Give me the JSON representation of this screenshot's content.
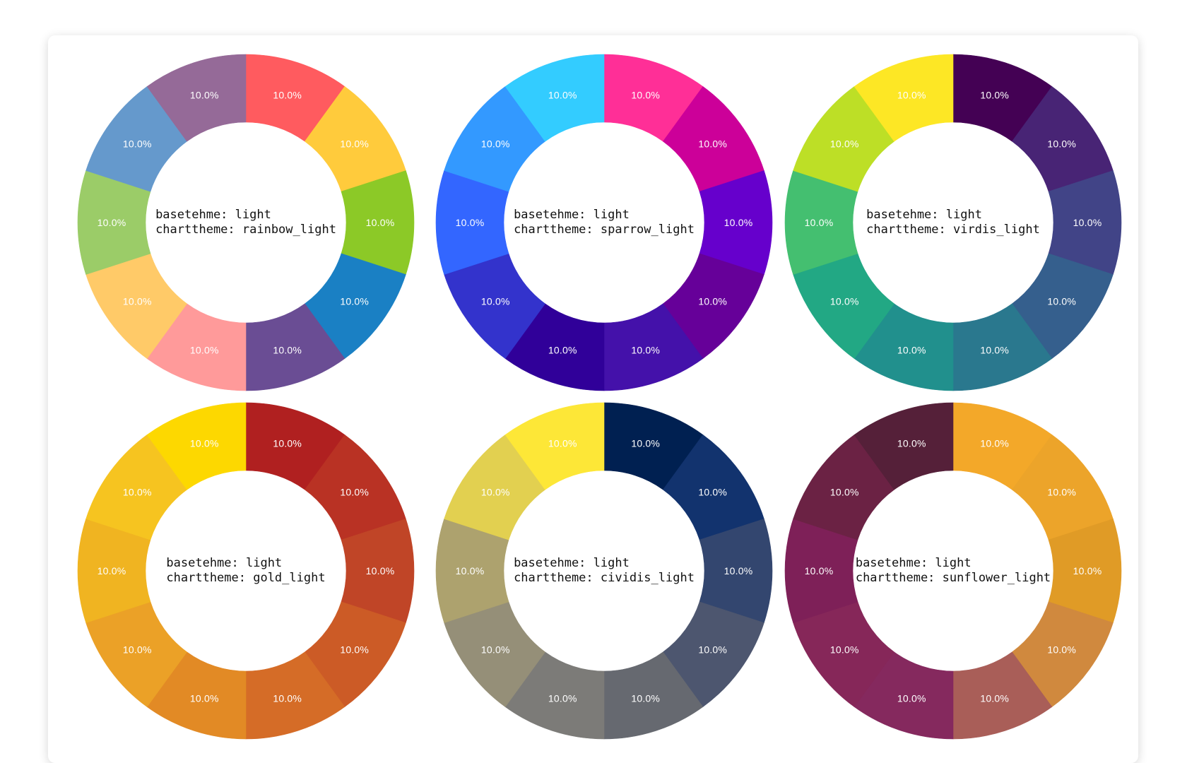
{
  "chart_data": [
    {
      "type": "pie",
      "donut": true,
      "center_lines": [
        "basetehme: light",
        "charttheme: rainbow_light"
      ],
      "values": [
        10,
        10,
        10,
        10,
        10,
        10,
        10,
        10,
        10,
        10
      ],
      "data_labels": [
        "10.0%",
        "10.0%",
        "10.0%",
        "10.0%",
        "10.0%",
        "10.0%",
        "10.0%",
        "10.0%",
        "10.0%",
        "10.0%"
      ],
      "colors": [
        "#ff5b5f",
        "#ffcb3c",
        "#8cc927",
        "#1a80c4",
        "#6a4d94",
        "#ff9a9a",
        "#ffca68",
        "#9bcc68",
        "#6599cc",
        "#956a98"
      ]
    },
    {
      "type": "pie",
      "donut": true,
      "center_lines": [
        "basetehme: light",
        "charttheme: sparrow_light"
      ],
      "values": [
        10,
        10,
        10,
        10,
        10,
        10,
        10,
        10,
        10,
        10
      ],
      "data_labels": [
        "10.0%",
        "10.0%",
        "10.0%",
        "10.0%",
        "10.0%",
        "10.0%",
        "10.0%",
        "10.0%",
        "10.0%",
        "10.0%"
      ],
      "colors": [
        "#ff2f97",
        "#cc0099",
        "#6600cc",
        "#660099",
        "#4411aa",
        "#300099",
        "#3333cc",
        "#3366ff",
        "#3399ff",
        "#33ccff"
      ]
    },
    {
      "type": "pie",
      "donut": true,
      "center_lines": [
        "basetehme: light",
        "charttheme: virdis_light"
      ],
      "values": [
        10,
        10,
        10,
        10,
        10,
        10,
        10,
        10,
        10,
        10
      ],
      "data_labels": [
        "10.0%",
        "10.0%",
        "10.0%",
        "10.0%",
        "10.0%",
        "10.0%",
        "10.0%",
        "10.0%",
        "10.0%",
        "10.0%"
      ],
      "colors": [
        "#440154",
        "#482475",
        "#414487",
        "#355f8d",
        "#2a788e",
        "#21908d",
        "#22a884",
        "#44bf70",
        "#bddf26",
        "#fde725"
      ]
    },
    {
      "type": "pie",
      "donut": true,
      "center_lines": [
        "basetehme: light",
        "charttheme: gold_light"
      ],
      "values": [
        10,
        10,
        10,
        10,
        10,
        10,
        10,
        10,
        10,
        10
      ],
      "data_labels": [
        "10.0%",
        "10.0%",
        "10.0%",
        "10.0%",
        "10.0%",
        "10.0%",
        "10.0%",
        "10.0%",
        "10.0%",
        "10.0%"
      ],
      "colors": [
        "#b02020",
        "#b93224",
        "#c04527",
        "#cc5b26",
        "#d56c27",
        "#e28a25",
        "#eba127",
        "#f0b421",
        "#f6c420",
        "#fdd800"
      ]
    },
    {
      "type": "pie",
      "donut": true,
      "center_lines": [
        "basetehme: light",
        "charttheme: cividis_light"
      ],
      "values": [
        10,
        10,
        10,
        10,
        10,
        10,
        10,
        10,
        10,
        10
      ],
      "data_labels": [
        "10.0%",
        "10.0%",
        "10.0%",
        "10.0%",
        "10.0%",
        "10.0%",
        "10.0%",
        "10.0%",
        "10.0%",
        "10.0%"
      ],
      "colors": [
        "#002051",
        "#12336e",
        "#33466f",
        "#4d566f",
        "#666970",
        "#7c7b78",
        "#958f78",
        "#ada26e",
        "#e2d050",
        "#fde737"
      ]
    },
    {
      "type": "pie",
      "donut": true,
      "center_lines": [
        "basetehme: light",
        "charttheme: sunflower_light"
      ],
      "values": [
        10,
        10,
        10,
        10,
        10,
        10,
        10,
        10,
        10,
        10
      ],
      "data_labels": [
        "10.0%",
        "10.0%",
        "10.0%",
        "10.0%",
        "10.0%",
        "10.0%",
        "10.0%",
        "10.0%",
        "10.0%",
        "10.0%"
      ],
      "colors": [
        "#f3a829",
        "#eca42a",
        "#e09b26",
        "#d0893e",
        "#a95e58",
        "#85295e",
        "#862759",
        "#7e2058",
        "#6b2244",
        "#552039"
      ]
    }
  ]
}
